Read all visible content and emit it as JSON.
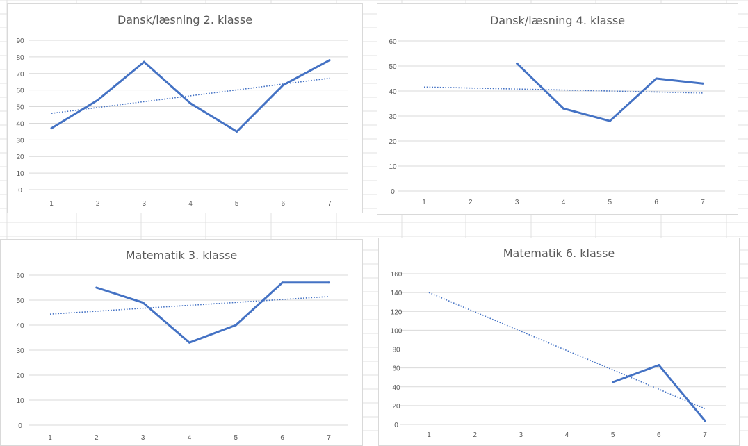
{
  "colors": {
    "series": "#4472c4",
    "gridline": "#d9d9d9",
    "tick_text": "#595959",
    "sheet_grid": "#e1e1e1"
  },
  "chart_data": [
    {
      "type": "line",
      "title": "Dansk/læsning 2. klasse",
      "x": [
        1,
        2,
        3,
        4,
        5,
        6,
        7
      ],
      "series": [
        {
          "values": [
            37,
            54,
            77,
            52,
            35,
            63,
            78
          ]
        }
      ],
      "trendline": {
        "style": "dotted",
        "linear": true
      },
      "ylim": [
        0,
        90
      ],
      "yticks": [
        0,
        10,
        20,
        30,
        40,
        50,
        60,
        70,
        80,
        90
      ],
      "xticks": [
        "1",
        "2",
        "3",
        "4",
        "5",
        "6",
        "7"
      ],
      "grid": true,
      "legend": "none"
    },
    {
      "type": "line",
      "title": "Dansk/læsning 4. klasse",
      "x": [
        1,
        2,
        3,
        4,
        5,
        6,
        7
      ],
      "series": [
        {
          "values": [
            null,
            null,
            51,
            33,
            28,
            45,
            43
          ]
        }
      ],
      "trendline": {
        "style": "dotted",
        "linear": true
      },
      "ylim": [
        0,
        60
      ],
      "yticks": [
        0,
        10,
        20,
        30,
        40,
        50,
        60
      ],
      "xticks": [
        "1",
        "2",
        "3",
        "4",
        "5",
        "6",
        "7"
      ],
      "grid": true,
      "legend": "none"
    },
    {
      "type": "line",
      "title": "Matematik 3. klasse",
      "x": [
        1,
        2,
        3,
        4,
        5,
        6,
        7
      ],
      "series": [
        {
          "values": [
            null,
            55,
            49,
            33,
            40,
            57,
            57
          ]
        }
      ],
      "trendline": {
        "style": "dotted",
        "linear": true
      },
      "ylim": [
        0,
        60
      ],
      "yticks": [
        0,
        10,
        20,
        30,
        40,
        50,
        60
      ],
      "xticks": [
        "1",
        "2",
        "3",
        "4",
        "5",
        "6",
        "7"
      ],
      "grid": true,
      "legend": "none"
    },
    {
      "type": "line",
      "title": "Matematik 6. klasse",
      "x": [
        1,
        2,
        3,
        4,
        5,
        6,
        7
      ],
      "series": [
        {
          "values": [
            null,
            null,
            null,
            null,
            45,
            63,
            4
          ]
        }
      ],
      "trendline": {
        "style": "dotted",
        "linear": true,
        "y_at_x1": 140
      },
      "ylim": [
        0,
        160
      ],
      "yticks": [
        0,
        20,
        40,
        60,
        80,
        100,
        120,
        140,
        160
      ],
      "xticks": [
        "1",
        "2",
        "3",
        "4",
        "5",
        "6",
        "7"
      ],
      "grid": true,
      "legend": "none"
    }
  ]
}
